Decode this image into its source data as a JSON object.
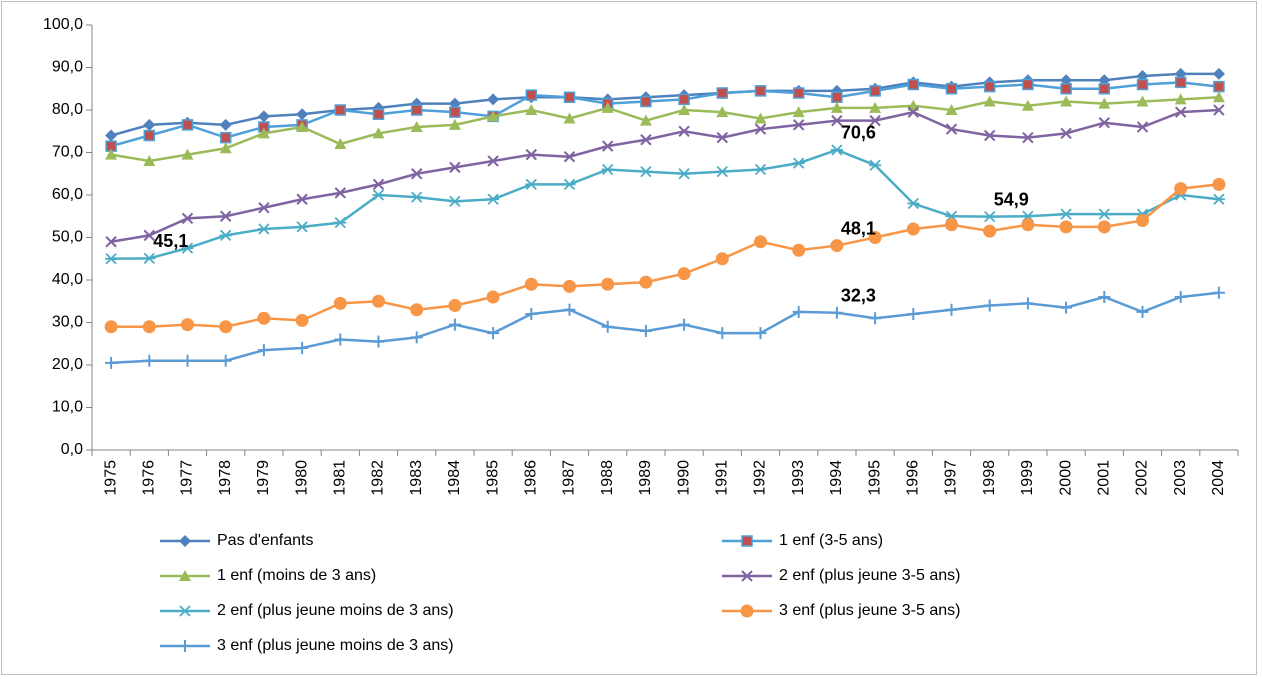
{
  "chart_data": {
    "type": "line",
    "categories": [
      "1975",
      "1976",
      "1977",
      "1978",
      "1979",
      "1980",
      "1981",
      "1982",
      "1983",
      "1984",
      "1985",
      "1986",
      "1987",
      "1988",
      "1989",
      "1990",
      "1991",
      "1992",
      "1993",
      "1994",
      "1995",
      "1996",
      "1997",
      "1998",
      "1999",
      "2000",
      "2001",
      "2002",
      "2003",
      "2004"
    ],
    "ylim": [
      0,
      100
    ],
    "yticks": [
      {
        "value": 0,
        "label": "0,0"
      },
      {
        "value": 10,
        "label": "10,0"
      },
      {
        "value": 20,
        "label": "20,0"
      },
      {
        "value": 30,
        "label": "30,0"
      },
      {
        "value": 40,
        "label": "40,0"
      },
      {
        "value": 50,
        "label": "50,0"
      },
      {
        "value": 60,
        "label": "60,0"
      },
      {
        "value": 70,
        "label": "70,0"
      },
      {
        "value": 80,
        "label": "80,0"
      },
      {
        "value": 90,
        "label": "90,0"
      },
      {
        "value": 100,
        "label": "100,0"
      }
    ],
    "grid": false,
    "legend": "bottom",
    "series": [
      {
        "name": "Pas d'enfants",
        "color": "#4f81bd",
        "marker": "diamond",
        "marker_color": "#4f81bd",
        "values": [
          74,
          76.5,
          77,
          76.5,
          78.5,
          79,
          80,
          80.5,
          81.5,
          81.5,
          82.5,
          83,
          83,
          82.5,
          83,
          83.5,
          84,
          84.5,
          84.5,
          84.5,
          85,
          86.5,
          85.5,
          86.5,
          87,
          87,
          87,
          88,
          88.5,
          88.5
        ]
      },
      {
        "name": "1 enf (3-5 ans)",
        "color": "#4f9fd8",
        "marker": "square",
        "marker_color": "#c0504d",
        "values": [
          71.5,
          74,
          76.5,
          73.5,
          76,
          76.5,
          80,
          79,
          80,
          79.5,
          78.5,
          83.5,
          83,
          81.5,
          82,
          82.5,
          84,
          84.5,
          84,
          83,
          84.5,
          86,
          85,
          85.5,
          86,
          85,
          85,
          86,
          86.5,
          85.5
        ]
      },
      {
        "name": "1 enf (moins de 3 ans)",
        "color": "#9bbb59",
        "marker": "triangle",
        "marker_color": "#9bbb59",
        "values": [
          69.5,
          68,
          69.5,
          71,
          74.5,
          76,
          72,
          74.5,
          76,
          76.5,
          78.5,
          80,
          78,
          80.5,
          77.5,
          80,
          79.5,
          78,
          79.5,
          80.5,
          80.5,
          81,
          80,
          82,
          81,
          82,
          81.5,
          82,
          82.5,
          83
        ]
      },
      {
        "name": "2 enf (plus jeune 3-5 ans)",
        "color": "#8064a2",
        "marker": "x",
        "marker_color": "#8064a2",
        "values": [
          49,
          50.5,
          54.5,
          55,
          57,
          59,
          60.5,
          62.5,
          65,
          66.5,
          68,
          69.5,
          69,
          71.5,
          73,
          75,
          73.5,
          75.5,
          76.5,
          77.5,
          77.5,
          79.5,
          75.5,
          74,
          73.5,
          74.5,
          77,
          76,
          79.5,
          80
        ]
      },
      {
        "name": "2 enf (plus jeune moins de 3 ans)",
        "color": "#4bacc6",
        "marker": "star",
        "marker_color": "#4bacc6",
        "values": [
          45,
          45.1,
          47.5,
          50.5,
          52,
          52.5,
          53.5,
          60,
          59.5,
          58.5,
          59,
          62.5,
          62.5,
          66,
          65.5,
          65,
          65.5,
          66,
          67.5,
          70.6,
          67,
          58,
          55,
          54.9,
          55,
          55.5,
          55.5,
          55.5,
          60,
          59
        ],
        "value_labels": [
          null,
          "45,1",
          null,
          null,
          null,
          null,
          null,
          null,
          null,
          null,
          null,
          null,
          null,
          null,
          null,
          null,
          null,
          null,
          null,
          "70,6",
          null,
          null,
          null,
          "54,9",
          null,
          null,
          null,
          null,
          null,
          null
        ]
      },
      {
        "name": "3 enf (plus jeune 3-5 ans)",
        "color": "#f79646",
        "marker": "circle",
        "marker_color": "#f79646",
        "values": [
          29,
          29,
          29.5,
          29,
          31,
          30.5,
          34.5,
          35,
          33,
          34,
          36,
          39,
          38.5,
          39,
          39.5,
          41.5,
          45,
          49,
          47,
          48.1,
          50,
          52,
          53,
          51.5,
          53,
          52.5,
          52.5,
          54,
          61.5,
          62.5
        ],
        "value_labels": [
          null,
          null,
          null,
          null,
          null,
          null,
          null,
          null,
          null,
          null,
          null,
          null,
          null,
          null,
          null,
          null,
          null,
          null,
          null,
          "48,1",
          null,
          null,
          null,
          null,
          null,
          null,
          null,
          null,
          null,
          null
        ]
      },
      {
        "name": "3 enf (plus jeune moins de 3 ans)",
        "color": "#5b9bd5",
        "marker": "plus",
        "marker_color": "#5b9bd5",
        "values": [
          20.5,
          21,
          21,
          21,
          23.5,
          24,
          26,
          25.5,
          26.5,
          29.5,
          27.5,
          32,
          33,
          29,
          28,
          29.5,
          27.5,
          27.5,
          32.5,
          32.3,
          31,
          32,
          33,
          34,
          34.5,
          33.5,
          36,
          32.5,
          36,
          37
        ],
        "value_labels": [
          null,
          null,
          null,
          null,
          null,
          null,
          null,
          null,
          null,
          null,
          null,
          null,
          null,
          null,
          null,
          null,
          null,
          null,
          null,
          "32,3",
          null,
          null,
          null,
          null,
          null,
          null,
          null,
          null,
          null,
          null
        ]
      }
    ]
  }
}
